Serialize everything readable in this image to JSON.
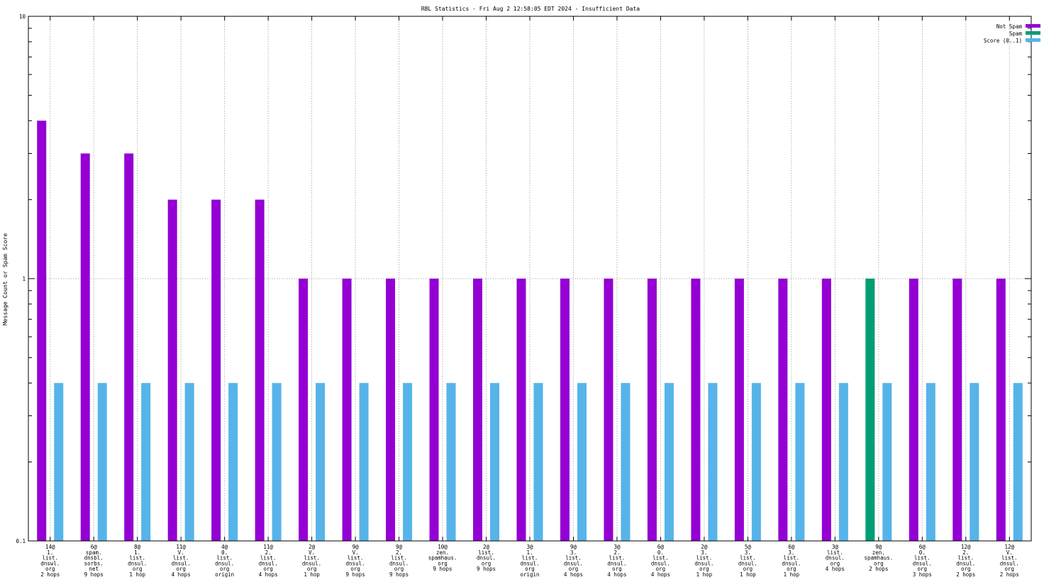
{
  "chart_data": {
    "type": "bar",
    "title": "RBL Statistics - Fri Aug  2 12:58:05 EDT 2024 - Insufficient Data",
    "xlabel": "",
    "ylabel": "Message Count or Spam Score",
    "yscale": "log",
    "ylim": [
      0.1,
      10
    ],
    "yticks": [
      "0.1",
      "1",
      "10"
    ],
    "grid": true,
    "legend_position": "top-right",
    "categories": [
      [
        "14@",
        "1.",
        "list.",
        "dnswl.",
        "org",
        "2 hops"
      ],
      [
        "6@",
        "spam.",
        "dnsbl.",
        "sorbs.",
        "net",
        "9 hops"
      ],
      [
        "8@",
        "1.",
        "list.",
        "dnsul.",
        "org",
        "1 hop"
      ],
      [
        "11@",
        "V.",
        "list.",
        "dnsul.",
        "org",
        "4 hops"
      ],
      [
        "4@",
        "0.",
        "list.",
        "dnsul.",
        "org",
        "origin"
      ],
      [
        "11@",
        "2.",
        "list.",
        "dnsul.",
        "org",
        "4 hops"
      ],
      [
        "2@",
        "V.",
        "list.",
        "dnsul.",
        "org",
        "1 hop"
      ],
      [
        "9@",
        "V.",
        "list.",
        "dnsul.",
        "org",
        "9 hops"
      ],
      [
        "9@",
        "2.",
        "list.",
        "dnsul.",
        "org",
        "9 hops"
      ],
      [
        "10@",
        "zen.",
        "spamhaus.",
        "org",
        "9 hops"
      ],
      [
        "2@",
        "list.",
        "dnsul.",
        "org",
        "9 hops"
      ],
      [
        "3@",
        "1.",
        "list.",
        "dnsul.",
        "org",
        "origin"
      ],
      [
        "9@",
        "3.",
        "list.",
        "dnsul.",
        "org",
        "4 hops"
      ],
      [
        "3@",
        "2.",
        "list.",
        "dnsul.",
        "org",
        "4 hops"
      ],
      [
        "6@",
        "0.",
        "list.",
        "dnsul.",
        "org",
        "4 hops"
      ],
      [
        "2@",
        "3.",
        "list.",
        "dnsul.",
        "org",
        "1 hop"
      ],
      [
        "5@",
        "3.",
        "list.",
        "dnsul.",
        "org",
        "1 hop"
      ],
      [
        "6@",
        "3.",
        "list.",
        "dnsul.",
        "org",
        "1 hop"
      ],
      [
        "3@",
        "list.",
        "dnsul.",
        "org",
        "4 hops"
      ],
      [
        "9@",
        "zen.",
        "spamhaus.",
        "org",
        "2 hops"
      ],
      [
        "6@",
        "0.",
        "list.",
        "dnsul.",
        "org",
        "3 hops"
      ],
      [
        "12@",
        "2.",
        "list.",
        "dnsul.",
        "org",
        "2 hops"
      ],
      [
        "12@",
        "V.",
        "list.",
        "dnsul.",
        "org",
        "2 hops"
      ]
    ],
    "series": [
      {
        "name": "Not Spam",
        "color": "#9400d3",
        "values": [
          4,
          3,
          3,
          2,
          2,
          2,
          1,
          1,
          1,
          1,
          1,
          1,
          1,
          1,
          1,
          1,
          1,
          1,
          1,
          null,
          1,
          1,
          1
        ]
      },
      {
        "name": "Spam",
        "color": "#009e73",
        "values": [
          null,
          null,
          null,
          null,
          null,
          null,
          null,
          null,
          null,
          null,
          null,
          null,
          null,
          null,
          null,
          null,
          null,
          null,
          null,
          1,
          null,
          null,
          null
        ]
      },
      {
        "name": "Score (0..1)",
        "color": "#56b4e9",
        "values": [
          0.4,
          0.4,
          0.4,
          0.4,
          0.4,
          0.4,
          0.4,
          0.4,
          0.4,
          0.4,
          0.4,
          0.4,
          0.4,
          0.4,
          0.4,
          0.4,
          0.4,
          0.4,
          0.4,
          0.4,
          0.4,
          0.4,
          0.4
        ]
      }
    ]
  }
}
